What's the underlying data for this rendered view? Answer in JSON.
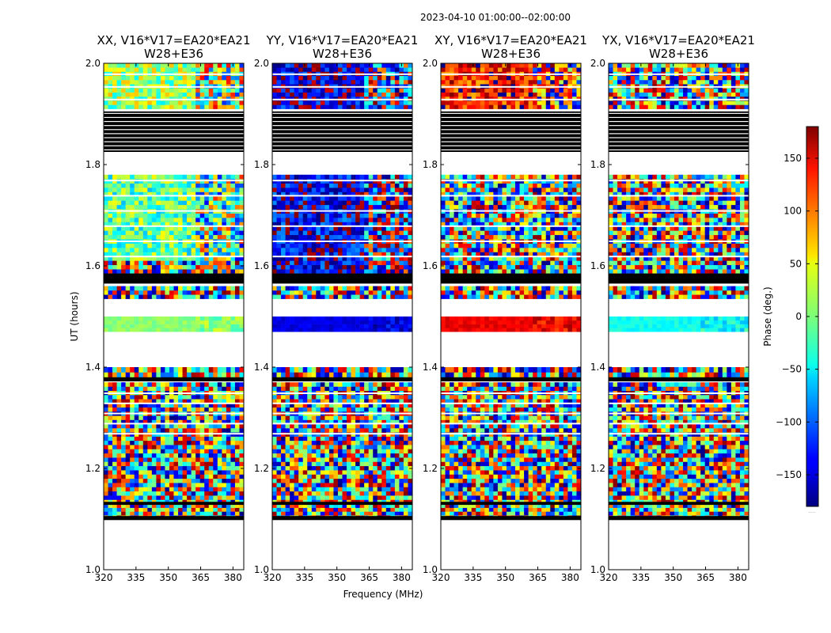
{
  "suptitle": "2023-04-10  01:00:00--02:00:00",
  "xlabel": "Frequency (MHz)",
  "ylabel": "UT (hours)",
  "colorbar": {
    "label": "Phase (deg.)",
    "ticks": [
      150,
      100,
      50,
      0,
      -50,
      -100,
      -150
    ],
    "tick_labels": [
      "150",
      "100",
      "50",
      "0",
      "−50",
      "−100",
      "−150"
    ],
    "range": [
      -180,
      180
    ],
    "colormap": "jet",
    "footer_text": "....."
  },
  "chart_data": [
    {
      "type": "heatmap",
      "title_line1": "XX, V16*V17=EA20*EA21",
      "title_line2": "W28+E36",
      "polarization": "XX",
      "xlim": [
        320,
        385
      ],
      "ylim": [
        1.0,
        2.0
      ],
      "xticks": [
        "320",
        "335",
        "350",
        "365",
        "380"
      ],
      "yticks": [
        "1.0",
        "1.2",
        "1.4",
        "1.6",
        "1.8",
        "2.0"
      ],
      "mean_phase_bands": [
        {
          "ut": [
            1.47,
            1.5
          ],
          "phase": 5
        },
        {
          "ut": [
            1.63,
            1.78
          ],
          "phase": -10
        },
        {
          "ut": [
            1.91,
            2.0
          ],
          "phase": 10
        }
      ]
    },
    {
      "type": "heatmap",
      "title_line1": "YY, V16*V17=EA20*EA21",
      "title_line2": "W28+E36",
      "polarization": "YY",
      "xlim": [
        320,
        385
      ],
      "ylim": [
        1.0,
        2.0
      ],
      "xticks": [
        "320",
        "335",
        "350",
        "365",
        "380"
      ],
      "yticks": [
        "1.0",
        "1.2",
        "1.4",
        "1.6",
        "1.8",
        "2.0"
      ],
      "mean_phase_bands": [
        {
          "ut": [
            1.47,
            1.5
          ],
          "phase": -145
        },
        {
          "ut": [
            1.6,
            1.78
          ],
          "phase": -140
        },
        {
          "ut": [
            1.91,
            2.0
          ],
          "phase": -150
        }
      ]
    },
    {
      "type": "heatmap",
      "title_line1": "XY, V16*V17=EA20*EA21",
      "title_line2": "W28+E36",
      "polarization": "XY",
      "xlim": [
        320,
        385
      ],
      "ylim": [
        1.0,
        2.0
      ],
      "xticks": [
        "320",
        "335",
        "350",
        "365",
        "380"
      ],
      "yticks": [
        "1.0",
        "1.2",
        "1.4",
        "1.6",
        "1.8",
        "2.0"
      ],
      "mean_phase_bands": [
        {
          "ut": [
            1.47,
            1.5
          ],
          "phase": 140
        },
        {
          "ut": [
            1.91,
            2.0
          ],
          "phase": 130
        }
      ]
    },
    {
      "type": "heatmap",
      "title_line1": "YX, V16*V17=EA20*EA21",
      "title_line2": "W28+E36",
      "polarization": "YX",
      "xlim": [
        320,
        385
      ],
      "ylim": [
        1.0,
        2.0
      ],
      "xticks": [
        "320",
        "335",
        "350",
        "365",
        "380"
      ],
      "yticks": [
        "1.0",
        "1.2",
        "1.4",
        "1.6",
        "1.8",
        "2.0"
      ],
      "mean_phase_bands": [
        {
          "ut": [
            1.47,
            1.5
          ],
          "phase": -40
        }
      ]
    }
  ]
}
